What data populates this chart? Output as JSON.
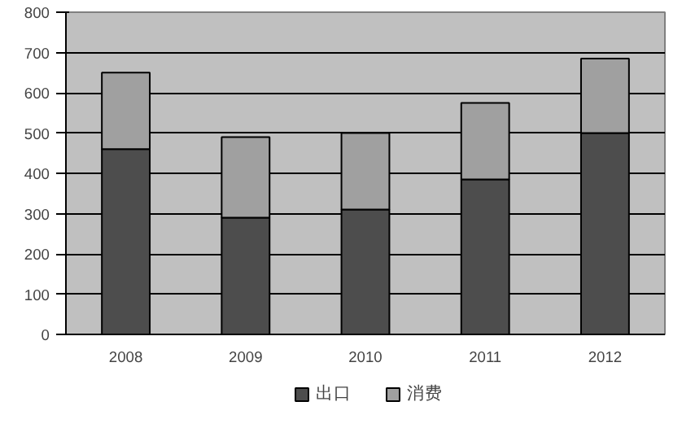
{
  "chart_data": {
    "type": "bar",
    "stacked": true,
    "categories": [
      "2008",
      "2009",
      "2010",
      "2011",
      "2012"
    ],
    "series": [
      {
        "name": "出口",
        "color": "#4d4d4d",
        "values": [
          460,
          290,
          310,
          385,
          500
        ]
      },
      {
        "name": "消费",
        "color": "#a0a0a0",
        "values": [
          190,
          200,
          190,
          190,
          185
        ]
      }
    ],
    "ylim": [
      0,
      800
    ],
    "yticks": [
      0,
      100,
      200,
      300,
      400,
      500,
      600,
      700,
      800
    ],
    "grid": "y",
    "legend": "bottom"
  }
}
